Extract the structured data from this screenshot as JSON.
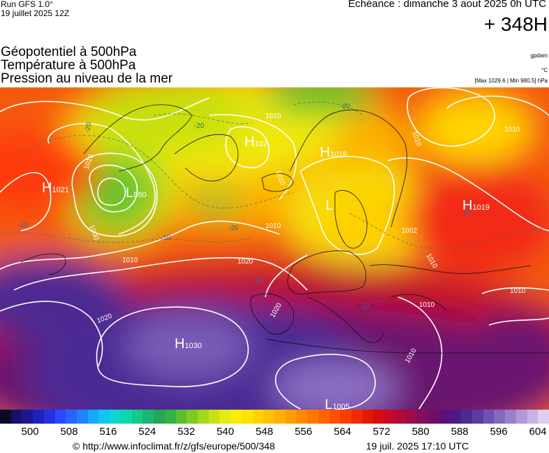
{
  "header": {
    "run_line1": "Run GFS 1.0°",
    "run_line2": "19 juillet 2025 12Z",
    "echeance": "Echéance : dimanche 3 aout 2025 0h UTC",
    "hour": "+ 348H",
    "title1": "Géopotentiel à 500hPa",
    "title2": "Température à 500hPa",
    "title3": "Pression au niveau de la mer",
    "unit_geo": "gpdam",
    "unit_temp": "°C",
    "minmax": "[Max 1029.6 | Min 980.5] hPa"
  },
  "map": {
    "pressure_centers": [
      {
        "type": "H",
        "value": "1021"
      },
      {
        "type": "L",
        "value": "980"
      },
      {
        "type": "H",
        "value": "1016"
      },
      {
        "type": "H",
        "value": "102"
      },
      {
        "type": "H",
        "value": "1019"
      },
      {
        "type": "H",
        "value": "1030"
      },
      {
        "type": "L",
        "value": "1005"
      },
      {
        "type": "L",
        "value": ""
      }
    ],
    "isobar_labels": [
      "1010",
      "1010",
      "1010",
      "1010",
      "1010",
      "1010",
      "1010",
      "1010",
      "1010",
      "1020",
      "1020",
      "1020",
      "1002",
      "1000",
      "1010",
      "1010"
    ],
    "temperature_labels": [
      "-20",
      "-20",
      "-20",
      "-20",
      "-10",
      "-10",
      "-10",
      "-10",
      "-10"
    ]
  },
  "scale": {
    "labels": [
      "500",
      "508",
      "516",
      "524",
      "532",
      "540",
      "548",
      "556",
      "564",
      "572",
      "580",
      "588",
      "596",
      "604"
    ],
    "colors": [
      "#0b0a2a",
      "#16106a",
      "#1a1890",
      "#1f22b8",
      "#2430dd",
      "#2a49ff",
      "#2a62ff",
      "#1f83ff",
      "#14a8ff",
      "#0dc7f0",
      "#0cd8d0",
      "#10d6ac",
      "#15c88c",
      "#18b873",
      "#22a75a",
      "#33b142",
      "#56c02e",
      "#7ccc22",
      "#a2d81a",
      "#c6e215",
      "#e6ea10",
      "#f8ee08",
      "#fde300",
      "#fed300",
      "#ffc200",
      "#ffb000",
      "#ff9d00",
      "#ff8a00",
      "#ff7700",
      "#ff6400",
      "#ff5000",
      "#fa3c00",
      "#f02a00",
      "#e61800",
      "#d80c10",
      "#c60a28",
      "#b00a3a",
      "#9a0c4a",
      "#840e5a",
      "#6e1068",
      "#5a1278",
      "#4a1a86",
      "#4c2a94",
      "#5a3ca2",
      "#6e52b0",
      "#8468be",
      "#9a80cc",
      "#b298d8",
      "#c8b2e4",
      "#ddcdf0"
    ]
  },
  "footer": {
    "url": "© http://www.infoclimat.fr/z/gfs/europe/500/348",
    "date": "19 juil. 2025 17:10 UTC"
  }
}
